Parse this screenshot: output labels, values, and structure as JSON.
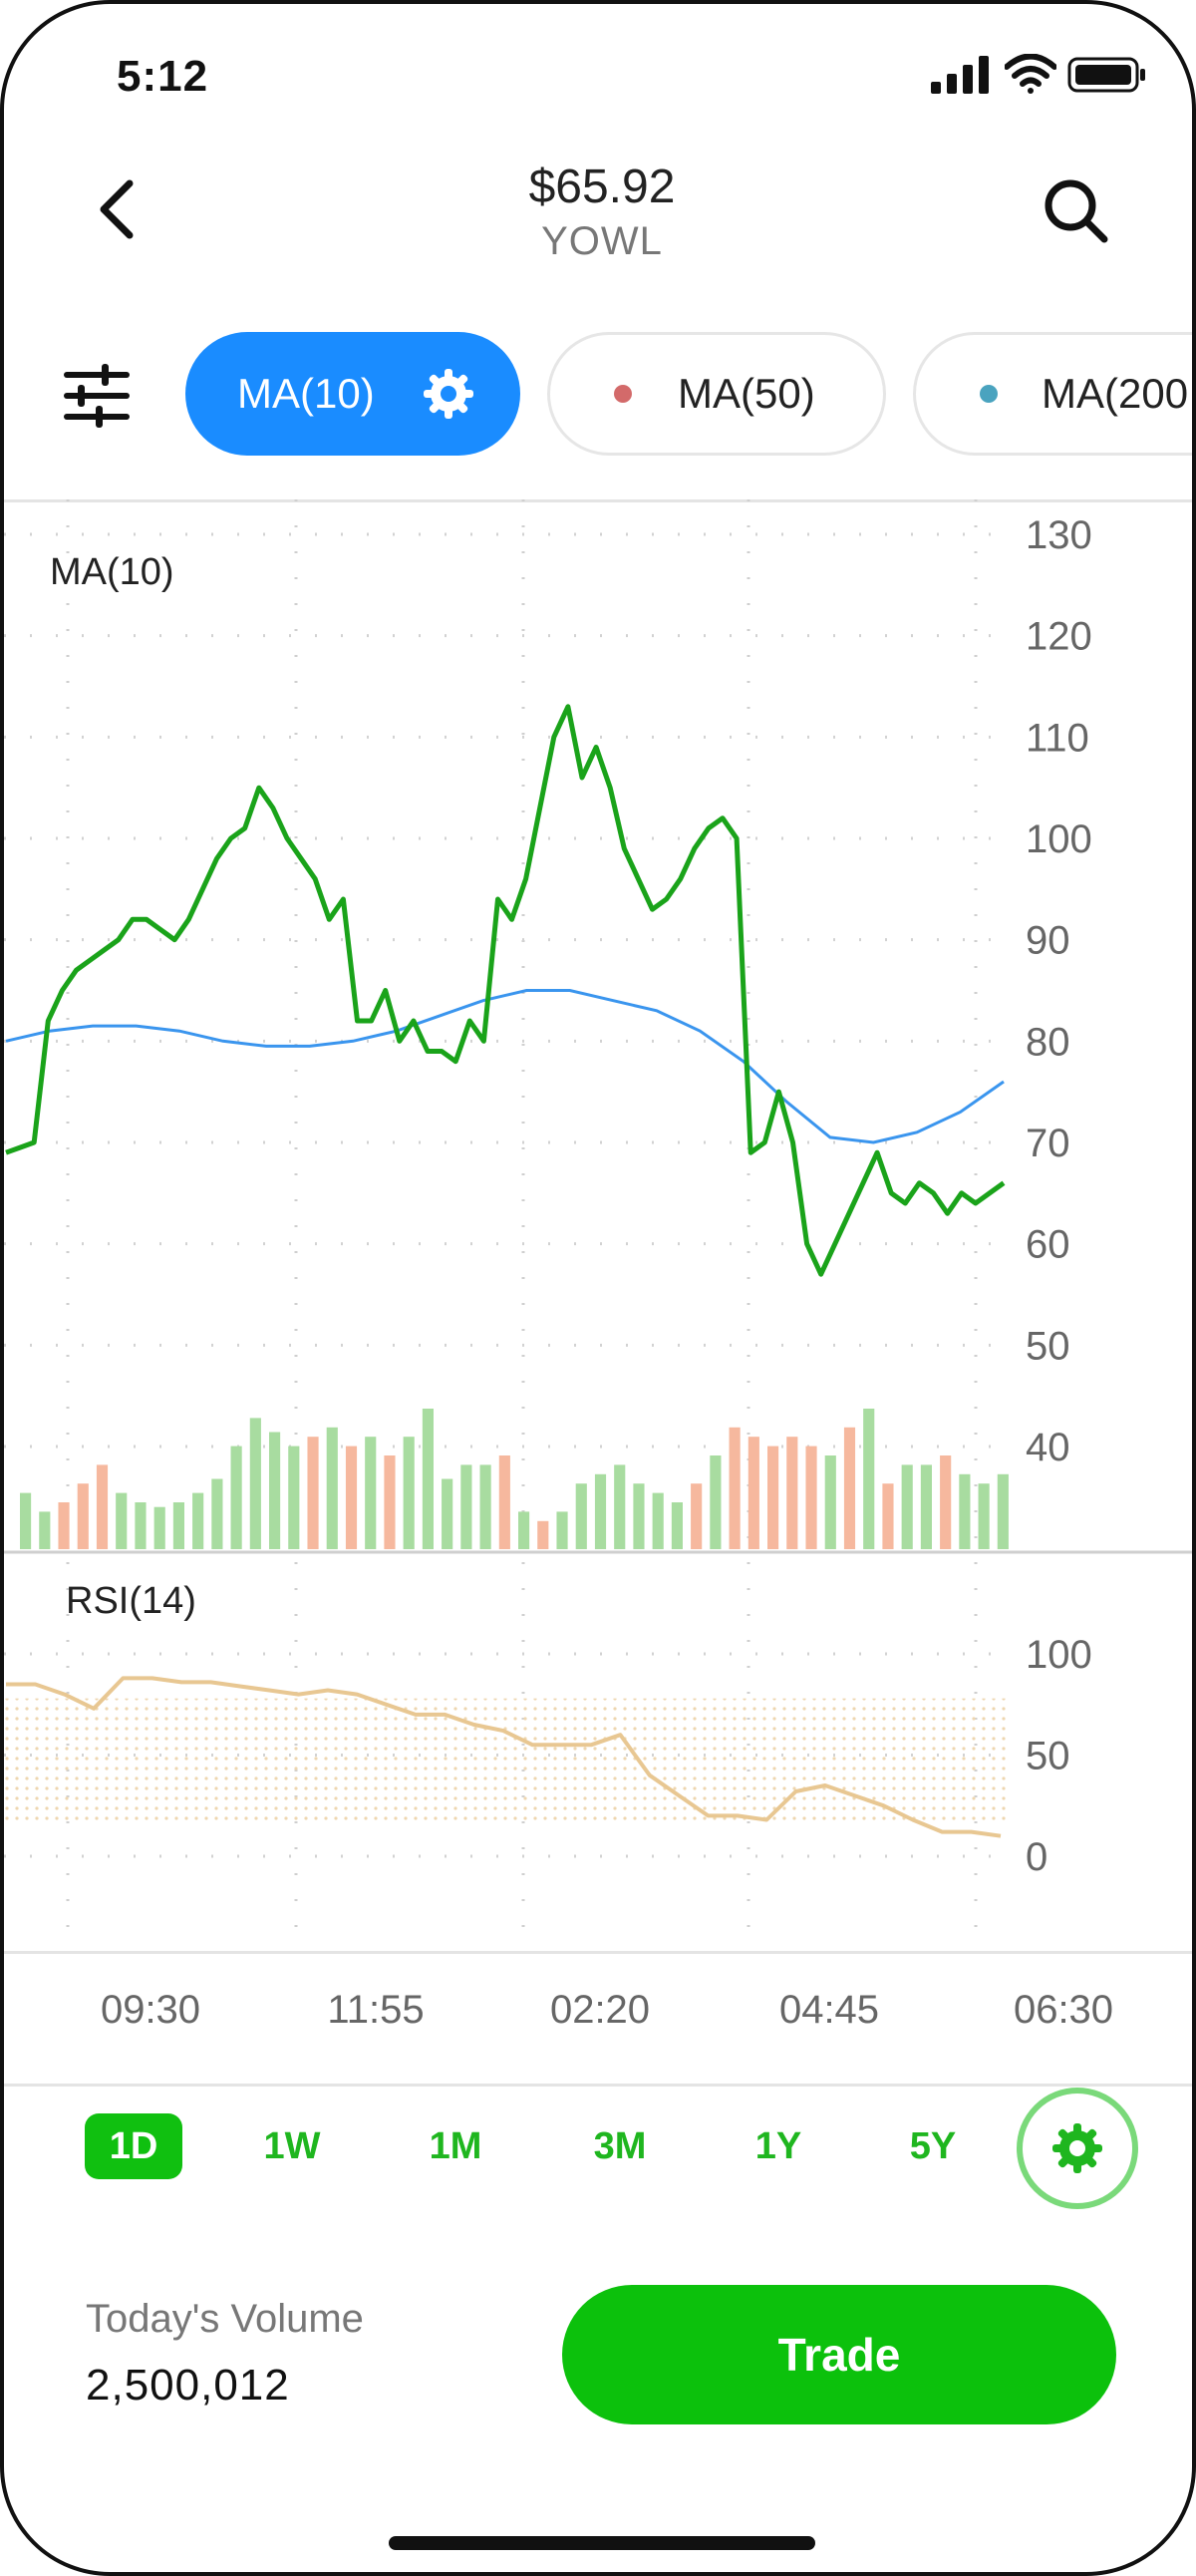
{
  "status_bar": {
    "time": "5:12"
  },
  "header": {
    "price": "$65.92",
    "ticker": "YOWL"
  },
  "indicators": [
    {
      "label": "MA(10)",
      "active": true
    },
    {
      "label": "MA(50)",
      "dot_color": "#d36a6a"
    },
    {
      "label": "MA(200",
      "dot_color": "#4aa3bf"
    }
  ],
  "colors": {
    "accent_blue": "#1a8cff",
    "price_green": "#1aa31a",
    "ma_blue": "#3a95ee",
    "rsi_tan": "#e8c792",
    "vol_green": "#a8dca0",
    "vol_salmon": "#f6b89e",
    "brand_green": "#0cc10c"
  },
  "chart_data": [
    {
      "type": "line",
      "title": "MA(10)",
      "yticks": [
        130,
        120,
        110,
        100,
        90,
        80,
        70,
        60,
        50,
        40
      ],
      "ylim": [
        30,
        133
      ],
      "series": [
        {
          "name": "price",
          "values": [
            69,
            69.5,
            70,
            82,
            85,
            87,
            88,
            89,
            90,
            92,
            92,
            91,
            90,
            92,
            95,
            98,
            100,
            101,
            105,
            103,
            100,
            98,
            96,
            92,
            94,
            82,
            82,
            85,
            80,
            82,
            79,
            79,
            78,
            82,
            80,
            94,
            92,
            96,
            103,
            110,
            113,
            106,
            109,
            105,
            99,
            96,
            93,
            94,
            96,
            99,
            101,
            102,
            100,
            69,
            70,
            75,
            70,
            60,
            57,
            60,
            63,
            66,
            69,
            65,
            64,
            66,
            65,
            63,
            65,
            64,
            65,
            66
          ],
          "x_range": [
            0,
            1000
          ]
        },
        {
          "name": "MA",
          "values": [
            80,
            81,
            81.5,
            81.5,
            81,
            80,
            79.5,
            79.5,
            80,
            81,
            82.5,
            84,
            85,
            85,
            84,
            83,
            81,
            78,
            74,
            70.5,
            70,
            71,
            73,
            76
          ],
          "x_range": [
            0,
            1000
          ]
        }
      ],
      "volume": {
        "values": [
          12,
          8,
          10,
          14,
          18,
          12,
          10,
          9,
          10,
          12,
          15,
          22,
          28,
          25,
          22,
          24,
          26,
          22,
          24,
          20,
          24,
          30,
          15,
          18,
          18,
          20,
          8,
          6,
          8,
          14,
          16,
          18,
          14,
          12,
          10,
          14,
          20,
          26,
          24,
          22,
          24,
          22,
          20,
          26,
          30,
          14,
          18,
          18,
          20,
          16,
          14,
          16
        ],
        "colors": [
          "g",
          "g",
          "s",
          "s",
          "s",
          "g",
          "g",
          "g",
          "g",
          "g",
          "g",
          "g",
          "g",
          "g",
          "g",
          "s",
          "g",
          "s",
          "g",
          "s",
          "g",
          "g",
          "g",
          "g",
          "g",
          "s",
          "g",
          "s",
          "g",
          "g",
          "g",
          "g",
          "g",
          "g",
          "g",
          "s",
          "g",
          "s",
          "s",
          "s",
          "s",
          "s",
          "g",
          "s",
          "g",
          "s",
          "g",
          "g",
          "s",
          "g",
          "g",
          "g"
        ]
      }
    },
    {
      "type": "area",
      "title": "RSI(14)",
      "yticks": [
        100,
        50,
        0
      ],
      "ylim": [
        -15,
        110
      ],
      "band": [
        15,
        78
      ],
      "series": [
        {
          "name": "RSI",
          "values": [
            85,
            85,
            80,
            73,
            88,
            88,
            86,
            86,
            84,
            82,
            80,
            82,
            80,
            75,
            70,
            70,
            65,
            62,
            55,
            55,
            55,
            60,
            40,
            30,
            20,
            20,
            18,
            32,
            35,
            30,
            25,
            18,
            12,
            12,
            10
          ]
        }
      ]
    }
  ],
  "x_axis_labels": [
    "09:30",
    "11:55",
    "02:20",
    "04:45",
    "06:30"
  ],
  "periods": [
    {
      "label": "1D",
      "active": true
    },
    {
      "label": "1W"
    },
    {
      "label": "1M"
    },
    {
      "label": "3M"
    },
    {
      "label": "1Y"
    },
    {
      "label": "5Y"
    }
  ],
  "footer": {
    "volume_label": "Today's Volume",
    "volume_value": "2,500,012",
    "trade_label": "Trade"
  }
}
